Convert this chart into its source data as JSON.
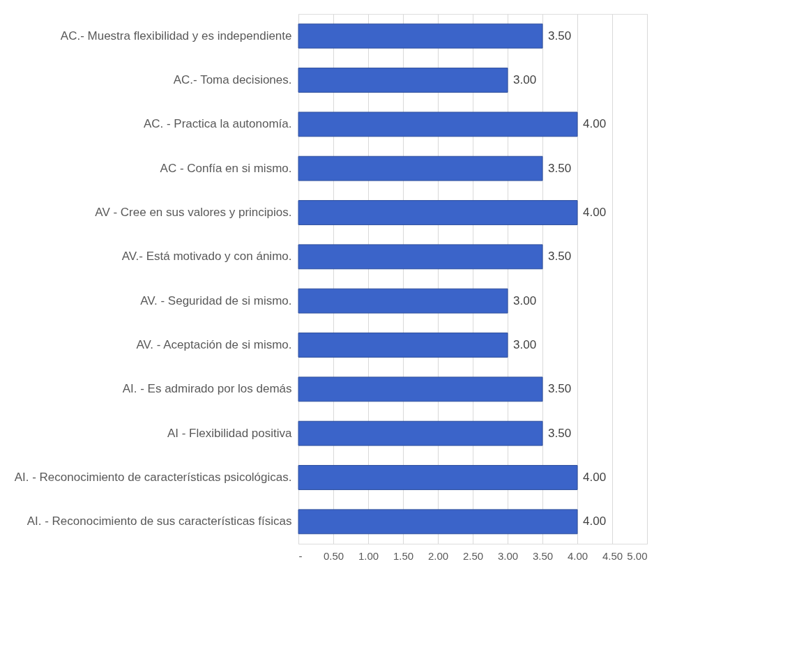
{
  "chart_data": {
    "type": "bar",
    "orientation": "horizontal",
    "categories": [
      "AC.- Muestra flexibilidad y es independiente",
      "AC.- Toma decisiones.",
      "AC. - Practica la autonomía.",
      "AC - Confía en si mismo.",
      "AV - Cree en sus valores y principios.",
      "AV.- Está motivado y con ánimo.",
      "AV. - Seguridad de si mismo.",
      "AV. - Aceptación de si mismo.",
      "AI. - Es admirado por los demás",
      "AI - Flexibilidad positiva",
      "AI. - Reconocimiento de características psicológicas.",
      "AI. - Reconocimiento de sus características físicas"
    ],
    "values": [
      3.5,
      3.0,
      4.0,
      3.5,
      4.0,
      3.5,
      3.0,
      3.0,
      3.5,
      3.5,
      4.0,
      4.0
    ],
    "value_labels": [
      "3.50",
      "3.00",
      "4.00",
      "3.50",
      "4.00",
      "3.50",
      "3.00",
      "3.00",
      "3.50",
      "3.50",
      "4.00",
      "4.00"
    ],
    "color": "#3b64c9",
    "xlim": [
      0,
      5
    ],
    "xticks": [
      {
        "value": 0,
        "label": "-"
      },
      {
        "value": 0.5,
        "label": "0.50"
      },
      {
        "value": 1,
        "label": "1.00"
      },
      {
        "value": 1.5,
        "label": "1.50"
      },
      {
        "value": 2,
        "label": "2.00"
      },
      {
        "value": 2.5,
        "label": "2.50"
      },
      {
        "value": 3,
        "label": "3.00"
      },
      {
        "value": 3.5,
        "label": "3.50"
      },
      {
        "value": 4,
        "label": "4.00"
      },
      {
        "value": 4.5,
        "label": "4.50"
      },
      {
        "value": 5,
        "label": "5.00"
      }
    ],
    "grid": "x"
  }
}
